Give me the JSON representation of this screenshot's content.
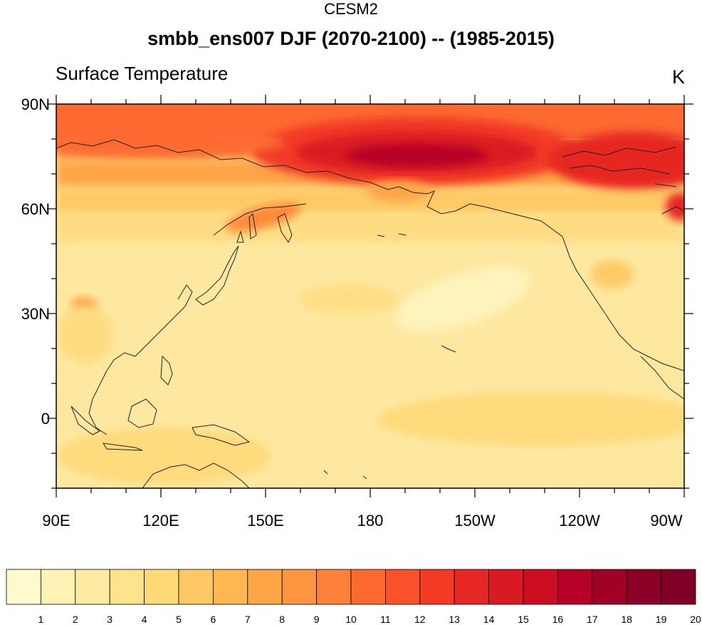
{
  "header": {
    "super_title": "CESM2",
    "main_title": "smbb_ens007 DJF (2070-2100) -- (1985-2015)",
    "left_title": "Surface Temperature",
    "units": "K"
  },
  "axes": {
    "lat_labels": [
      "90N",
      "60N",
      "30N",
      "0"
    ],
    "lon_labels": [
      "90E",
      "120E",
      "150E",
      "180",
      "150W",
      "120W",
      "90W"
    ]
  },
  "colorbar": {
    "labels": [
      "1",
      "2",
      "3",
      "4",
      "5",
      "6",
      "7",
      "8",
      "9",
      "10",
      "11",
      "12",
      "13",
      "14",
      "15",
      "16",
      "17",
      "18",
      "19",
      "20"
    ],
    "colors": [
      "#fff9cd",
      "#fff2b5",
      "#feeaa1",
      "#fee38b",
      "#fed976",
      "#fec964",
      "#feb751",
      "#fea546",
      "#fd943f",
      "#fd8138",
      "#fc6a30",
      "#f9522a",
      "#f23a25",
      "#e72723",
      "#da1a22",
      "#cb0d22",
      "#b70026",
      "#a10026",
      "#8a0026",
      "#800026"
    ]
  },
  "chart_data": {
    "type": "heatmap",
    "title": "smbb_ens007 DJF (2070-2100) -- (1985-2015)",
    "lon_range": [
      "90E",
      "90W"
    ],
    "lat_range": [
      "-20",
      "90N"
    ],
    "levels": [
      1,
      2,
      3,
      4,
      5,
      6,
      7,
      8,
      9,
      10,
      11,
      12,
      13,
      14,
      15,
      16,
      17,
      18,
      19,
      20
    ],
    "units": "K"
  }
}
